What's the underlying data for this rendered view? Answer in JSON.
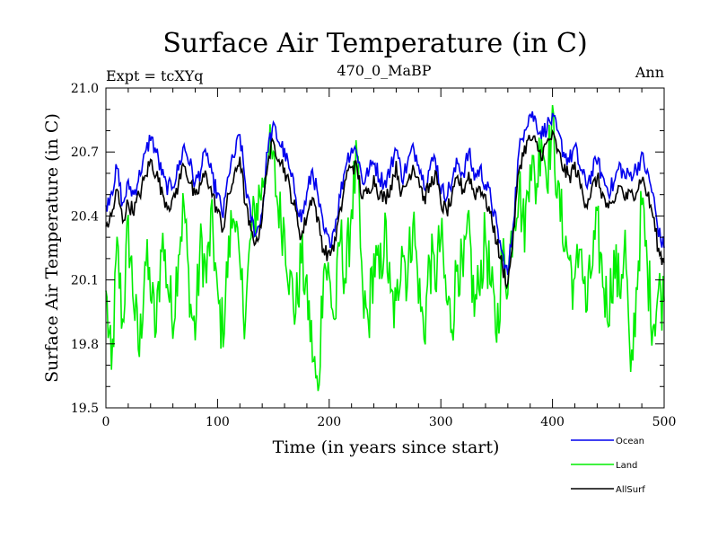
{
  "chart_data": {
    "type": "line",
    "title": "Surface Air Temperature (in C)",
    "subtitle": "470_0_MaBP",
    "expt_label": "Expt = tcXYq",
    "period_label": "Ann",
    "xlabel": "Time (in years since start)",
    "ylabel": "Surface Air Temperature (in C)",
    "xlim": [
      0,
      500
    ],
    "ylim": [
      19.5,
      21.0
    ],
    "x_ticks": [
      0,
      100,
      200,
      300,
      400,
      500
    ],
    "x_tick_labels": [
      "0",
      "100",
      "200",
      "300",
      "400",
      "500"
    ],
    "y_ticks": [
      19.5,
      19.8,
      20.1,
      20.4,
      20.7,
      21.0
    ],
    "y_tick_labels": [
      "19.5",
      "19.8",
      "20.1",
      "20.4",
      "20.7",
      "21.0"
    ],
    "grid": false,
    "legend_position": "bottom-right",
    "series": [
      {
        "name": "Land",
        "color": "#00ee00",
        "x": [
          0,
          5,
          10,
          15,
          20,
          25,
          30,
          35,
          40,
          45,
          50,
          55,
          60,
          65,
          70,
          75,
          80,
          85,
          90,
          95,
          100,
          105,
          110,
          115,
          120,
          125,
          130,
          135,
          140,
          145,
          150,
          155,
          160,
          165,
          170,
          175,
          180,
          185,
          190,
          195,
          200,
          205,
          210,
          215,
          220,
          225,
          230,
          235,
          240,
          245,
          250,
          255,
          260,
          265,
          270,
          275,
          280,
          285,
          290,
          295,
          300,
          305,
          310,
          315,
          320,
          325,
          330,
          335,
          340,
          345,
          350,
          355,
          360,
          365,
          370,
          375,
          380,
          385,
          390,
          395,
          400,
          405,
          410,
          415,
          420,
          425,
          430,
          435,
          440,
          445,
          450,
          455,
          460,
          465,
          470,
          475,
          480,
          485,
          490,
          495,
          500
        ],
        "values": [
          20.05,
          19.65,
          20.25,
          19.9,
          20.35,
          20.0,
          19.75,
          20.2,
          20.05,
          19.85,
          20.3,
          20.1,
          19.9,
          20.25,
          20.45,
          20.0,
          19.85,
          20.3,
          20.1,
          20.4,
          20.0,
          19.85,
          20.25,
          20.45,
          20.1,
          19.95,
          20.3,
          20.45,
          20.55,
          20.7,
          20.65,
          20.4,
          20.35,
          20.1,
          19.95,
          20.2,
          20.05,
          19.75,
          19.55,
          20.2,
          20.1,
          19.9,
          20.3,
          20.1,
          20.45,
          20.65,
          20.0,
          19.9,
          20.2,
          20.1,
          20.35,
          20.0,
          19.95,
          20.3,
          20.1,
          20.4,
          20.05,
          19.85,
          20.2,
          20.1,
          20.3,
          20.0,
          19.9,
          20.2,
          20.1,
          20.35,
          19.95,
          20.1,
          20.3,
          20.05,
          19.85,
          20.2,
          20.1,
          20.4,
          20.55,
          20.3,
          20.7,
          20.5,
          20.8,
          20.6,
          20.85,
          20.5,
          20.3,
          20.2,
          20.05,
          20.3,
          19.95,
          20.15,
          20.35,
          20.1,
          19.95,
          20.2,
          20.05,
          20.3,
          19.6,
          20.05,
          20.45,
          20.15,
          19.9,
          20.05,
          20.0
        ]
      },
      {
        "name": "Ocean",
        "color": "#0000ee",
        "x": [
          0,
          5,
          10,
          15,
          20,
          25,
          30,
          35,
          40,
          45,
          50,
          55,
          60,
          65,
          70,
          75,
          80,
          85,
          90,
          95,
          100,
          105,
          110,
          115,
          120,
          125,
          130,
          135,
          140,
          145,
          150,
          155,
          160,
          165,
          170,
          175,
          180,
          185,
          190,
          195,
          200,
          205,
          210,
          215,
          220,
          225,
          230,
          235,
          240,
          245,
          250,
          255,
          260,
          265,
          270,
          275,
          280,
          285,
          290,
          295,
          300,
          305,
          310,
          315,
          320,
          325,
          330,
          335,
          340,
          345,
          350,
          355,
          360,
          365,
          370,
          375,
          380,
          385,
          390,
          395,
          400,
          405,
          410,
          415,
          420,
          425,
          430,
          435,
          440,
          445,
          450,
          455,
          460,
          465,
          470,
          475,
          480,
          485,
          490,
          495,
          500
        ],
        "values": [
          20.45,
          20.52,
          20.62,
          20.45,
          20.55,
          20.5,
          20.6,
          20.68,
          20.77,
          20.7,
          20.6,
          20.52,
          20.55,
          20.62,
          20.73,
          20.65,
          20.55,
          20.62,
          20.7,
          20.58,
          20.5,
          20.4,
          20.6,
          20.68,
          20.78,
          20.55,
          20.38,
          20.32,
          20.42,
          20.72,
          20.82,
          20.75,
          20.7,
          20.6,
          20.5,
          20.38,
          20.5,
          20.62,
          20.48,
          20.33,
          20.28,
          20.35,
          20.5,
          20.65,
          20.72,
          20.7,
          20.56,
          20.6,
          20.66,
          20.58,
          20.56,
          20.62,
          20.73,
          20.58,
          20.64,
          20.72,
          20.66,
          20.55,
          20.62,
          20.68,
          20.52,
          20.5,
          20.56,
          20.65,
          20.6,
          20.7,
          20.58,
          20.62,
          20.55,
          20.48,
          20.35,
          20.22,
          20.12,
          20.38,
          20.7,
          20.82,
          20.88,
          20.85,
          20.78,
          20.82,
          20.86,
          20.78,
          20.7,
          20.66,
          20.72,
          20.62,
          20.55,
          20.6,
          20.66,
          20.58,
          20.52,
          20.55,
          20.64,
          20.58,
          20.6,
          20.62,
          20.68,
          20.6,
          20.5,
          20.32,
          20.25
        ]
      },
      {
        "name": "AllSurf",
        "color": "#000000",
        "x": [
          0,
          5,
          10,
          15,
          20,
          25,
          30,
          35,
          40,
          45,
          50,
          55,
          60,
          65,
          70,
          75,
          80,
          85,
          90,
          95,
          100,
          105,
          110,
          115,
          120,
          125,
          130,
          135,
          140,
          145,
          150,
          155,
          160,
          165,
          170,
          175,
          180,
          185,
          190,
          195,
          200,
          205,
          210,
          215,
          220,
          225,
          230,
          235,
          240,
          245,
          250,
          255,
          260,
          265,
          270,
          275,
          280,
          285,
          290,
          295,
          300,
          305,
          310,
          315,
          320,
          325,
          330,
          335,
          340,
          345,
          350,
          355,
          360,
          365,
          370,
          375,
          380,
          385,
          390,
          395,
          400,
          405,
          410,
          415,
          420,
          425,
          430,
          435,
          440,
          445,
          450,
          455,
          460,
          465,
          470,
          475,
          480,
          485,
          490,
          495,
          500
        ],
        "values": [
          20.35,
          20.4,
          20.52,
          20.38,
          20.46,
          20.42,
          20.5,
          20.58,
          20.66,
          20.6,
          20.52,
          20.45,
          20.47,
          20.55,
          20.65,
          20.56,
          20.48,
          20.55,
          20.6,
          20.5,
          20.42,
          20.34,
          20.5,
          20.58,
          20.68,
          20.45,
          20.32,
          20.28,
          20.4,
          20.66,
          20.74,
          20.68,
          20.62,
          20.52,
          20.42,
          20.3,
          20.4,
          20.5,
          20.38,
          20.24,
          20.22,
          20.28,
          20.42,
          20.58,
          20.64,
          20.62,
          20.48,
          20.52,
          20.58,
          20.5,
          20.48,
          20.54,
          20.64,
          20.5,
          20.56,
          20.64,
          20.58,
          20.48,
          20.54,
          20.6,
          20.46,
          20.42,
          20.48,
          20.58,
          20.52,
          20.6,
          20.5,
          20.54,
          20.48,
          20.4,
          20.28,
          20.16,
          20.08,
          20.32,
          20.62,
          20.72,
          20.76,
          20.74,
          20.68,
          20.74,
          20.78,
          20.7,
          20.62,
          20.58,
          20.64,
          20.54,
          20.46,
          20.52,
          20.58,
          20.5,
          20.42,
          20.46,
          20.55,
          20.48,
          20.5,
          20.52,
          20.58,
          20.5,
          20.4,
          20.24,
          20.18
        ]
      }
    ]
  }
}
